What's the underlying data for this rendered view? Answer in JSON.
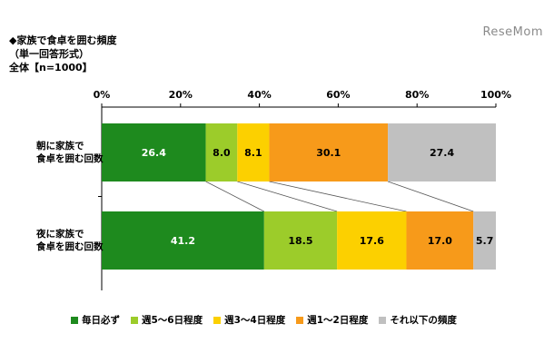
{
  "header": {
    "title": "◆家族で食卓を囲む頻度",
    "subtitle": "（単一回答形式）",
    "sample": "全体【n=1000】",
    "watermark": "ReseMom"
  },
  "chart_data": {
    "type": "bar",
    "orientation": "horizontal",
    "stacked": true,
    "percent_axis": true,
    "categories": [
      "朝に家族で食卓を囲む回数",
      "夜に家族で食卓を囲む回数"
    ],
    "category_lines": [
      [
        "朝に家族で",
        "食卓を囲む回数"
      ],
      [
        "夜に家族で",
        "食卓を囲む回数"
      ]
    ],
    "xticks": [
      "0%",
      "20%",
      "40%",
      "60%",
      "80%",
      "100%"
    ],
    "xlim": [
      0,
      100
    ],
    "series": [
      {
        "name": "毎日必ず",
        "color": "#1e8a1e",
        "values": [
          26.4,
          41.2
        ],
        "labels": [
          "26.4",
          "41.2"
        ]
      },
      {
        "name": "週5～6日程度",
        "color": "#9ccc2a",
        "values": [
          8.0,
          18.5
        ],
        "labels": [
          "8.0",
          "18.5"
        ]
      },
      {
        "name": "週3～4日程度",
        "color": "#fcd000",
        "values": [
          8.1,
          17.6
        ],
        "labels": [
          "8.1",
          "17.6"
        ]
      },
      {
        "name": "週1～2日程度",
        "color": "#f79a1a",
        "values": [
          30.1,
          17.0
        ],
        "labels": [
          "30.1",
          "17.0"
        ]
      },
      {
        "name": "それ以下の頻度",
        "color": "#c0c0c0",
        "values": [
          27.4,
          5.7
        ],
        "labels": [
          "27.4",
          "5.7"
        ]
      }
    ],
    "legend_position": "bottom",
    "grid": false
  }
}
